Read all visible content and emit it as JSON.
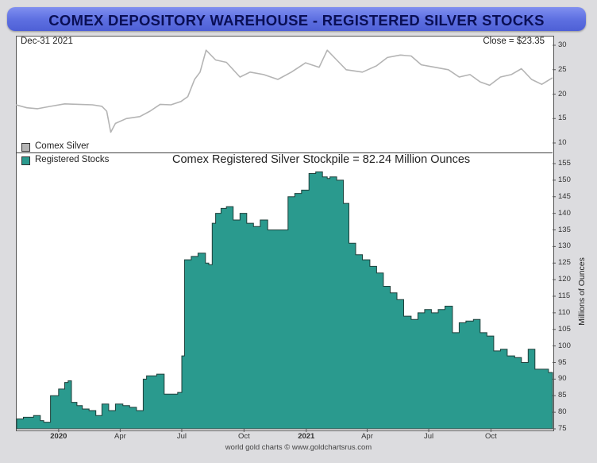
{
  "header": {
    "title": "COMEX DEPOSITORY WAREHOUSE - REGISTERED SILVER STOCKS"
  },
  "top_panel": {
    "date_label": "Dec-31  2021",
    "close_label": "Close = $23.35",
    "legend_label": "Comex Silver"
  },
  "bottom_panel": {
    "legend_label": "Registered Stocks",
    "annotation": "Comex Registered Silver Stockpile = 82.24 Million Ounces",
    "ylabel": "Millions of Ounces"
  },
  "footer": {
    "credit": "world gold charts © www.goldchartsrus.com"
  },
  "colors": {
    "title_bar": "#5c6ee0",
    "title_text": "#0a0f55",
    "stocks_fill": "#2a9a8e",
    "stocks_line": "#1f3f3a",
    "silver_line": "#b4b4b4"
  },
  "chart_data": [
    {
      "type": "line",
      "series": [
        {
          "name": "Comex Silver",
          "x": [
            "2019-10-30",
            "2019-11-15",
            "2019-12-01",
            "2019-12-20",
            "2020-01-10",
            "2020-01-31",
            "2020-02-20",
            "2020-03-05",
            "2020-03-12",
            "2020-03-18",
            "2020-03-25",
            "2020-04-10",
            "2020-04-30",
            "2020-05-15",
            "2020-05-30",
            "2020-06-15",
            "2020-06-30",
            "2020-07-10",
            "2020-07-20",
            "2020-07-28",
            "2020-08-06",
            "2020-08-20",
            "2020-09-05",
            "2020-09-25",
            "2020-10-10",
            "2020-10-30",
            "2020-11-20",
            "2020-12-10",
            "2020-12-31",
            "2021-01-20",
            "2021-02-01",
            "2021-02-15",
            "2021-03-01",
            "2021-03-25",
            "2021-04-15",
            "2021-05-01",
            "2021-05-20",
            "2021-06-05",
            "2021-06-20",
            "2021-07-10",
            "2021-07-30",
            "2021-08-15",
            "2021-08-31",
            "2021-09-15",
            "2021-09-29",
            "2021-10-15",
            "2021-10-31",
            "2021-11-15",
            "2021-11-30",
            "2021-12-15",
            "2021-12-31"
          ],
          "values": [
            17.8,
            17.2,
            17.0,
            17.5,
            18.0,
            17.9,
            17.8,
            17.5,
            16.5,
            12.2,
            14.0,
            15.0,
            15.4,
            16.5,
            17.9,
            17.8,
            18.5,
            19.5,
            23.0,
            24.5,
            29.0,
            27.0,
            26.5,
            23.5,
            24.5,
            24.0,
            23.0,
            24.5,
            26.4,
            25.5,
            29.0,
            27.0,
            25.0,
            24.5,
            25.8,
            27.5,
            28.0,
            27.8,
            26.0,
            25.5,
            25.0,
            23.5,
            24.0,
            22.5,
            21.8,
            23.5,
            24.0,
            25.2,
            23.0,
            22.0,
            23.35
          ]
        }
      ],
      "ylim": [
        10,
        30
      ],
      "yticks": [
        "10",
        "15",
        "20",
        "25",
        "30"
      ]
    },
    {
      "type": "area",
      "series": [
        {
          "name": "Registered Stocks",
          "x": [
            "2019-10-31",
            "2019-11-10",
            "2019-11-25",
            "2019-12-05",
            "2019-12-10",
            "2019-12-20",
            "2020-01-01",
            "2020-01-10",
            "2020-01-15",
            "2020-01-20",
            "2020-01-28",
            "2020-02-05",
            "2020-02-15",
            "2020-02-25",
            "2020-03-05",
            "2020-03-15",
            "2020-03-25",
            "2020-04-05",
            "2020-04-15",
            "2020-04-25",
            "2020-05-05",
            "2020-05-10",
            "2020-05-15",
            "2020-05-25",
            "2020-06-05",
            "2020-06-15",
            "2020-06-25",
            "2020-07-01",
            "2020-07-05",
            "2020-07-15",
            "2020-07-25",
            "2020-08-05",
            "2020-08-10",
            "2020-08-15",
            "2020-08-20",
            "2020-08-28",
            "2020-09-05",
            "2020-09-15",
            "2020-09-25",
            "2020-10-05",
            "2020-10-15",
            "2020-10-25",
            "2020-11-05",
            "2020-11-15",
            "2020-11-25",
            "2020-12-05",
            "2020-12-15",
            "2020-12-25",
            "2021-01-05",
            "2021-01-15",
            "2021-01-25",
            "2021-02-01",
            "2021-02-05",
            "2021-02-15",
            "2021-02-25",
            "2021-03-05",
            "2021-03-15",
            "2021-03-25",
            "2021-04-05",
            "2021-04-15",
            "2021-04-25",
            "2021-05-05",
            "2021-05-15",
            "2021-05-25",
            "2021-06-05",
            "2021-06-15",
            "2021-06-25",
            "2021-07-05",
            "2021-07-15",
            "2021-07-25",
            "2021-08-05",
            "2021-08-15",
            "2021-08-25",
            "2021-09-05",
            "2021-09-15",
            "2021-09-25",
            "2021-10-05",
            "2021-10-15",
            "2021-10-25",
            "2021-11-05",
            "2021-11-15",
            "2021-11-25",
            "2021-12-05",
            "2021-12-15",
            "2021-12-25",
            "2021-12-31"
          ],
          "values": [
            78,
            78.5,
            79,
            77.5,
            77,
            85,
            87,
            89,
            89.5,
            83,
            82,
            81,
            80.5,
            79,
            82.5,
            80.5,
            82.5,
            82,
            81.5,
            80.5,
            90,
            91,
            91,
            91.5,
            85.5,
            85.5,
            86,
            97,
            126,
            127,
            128,
            125,
            124.5,
            137,
            140,
            141.5,
            142,
            138,
            140,
            137,
            136,
            138,
            135,
            135,
            135,
            145,
            146,
            147,
            152,
            152.5,
            151,
            150.5,
            151,
            150,
            143,
            131,
            127.5,
            126,
            124,
            122,
            118,
            116,
            114,
            109,
            108,
            110,
            111,
            110,
            111,
            112,
            104,
            107,
            107.5,
            108,
            104,
            103,
            98.5,
            99,
            97,
            96.5,
            95,
            99,
            93,
            93,
            92,
            82.24
          ]
        }
      ],
      "ylim": [
        75,
        155
      ],
      "yticks": [
        "75",
        "80",
        "85",
        "90",
        "95",
        "100",
        "105",
        "110",
        "115",
        "120",
        "125",
        "130",
        "135",
        "140",
        "145",
        "150",
        "155"
      ],
      "xticks": [
        {
          "date": "2020-01-01",
          "label": "2020",
          "bold": true
        },
        {
          "date": "2020-04-01",
          "label": "Apr",
          "bold": false
        },
        {
          "date": "2020-07-01",
          "label": "Jul",
          "bold": false
        },
        {
          "date": "2020-10-01",
          "label": "Oct",
          "bold": false
        },
        {
          "date": "2021-01-01",
          "label": "2021",
          "bold": true
        },
        {
          "date": "2021-04-01",
          "label": "Apr",
          "bold": false
        },
        {
          "date": "2021-07-01",
          "label": "Jul",
          "bold": false
        },
        {
          "date": "2021-10-01",
          "label": "Oct",
          "bold": false
        }
      ],
      "xrange": [
        "2019-10-31",
        "2021-12-31"
      ]
    }
  ]
}
